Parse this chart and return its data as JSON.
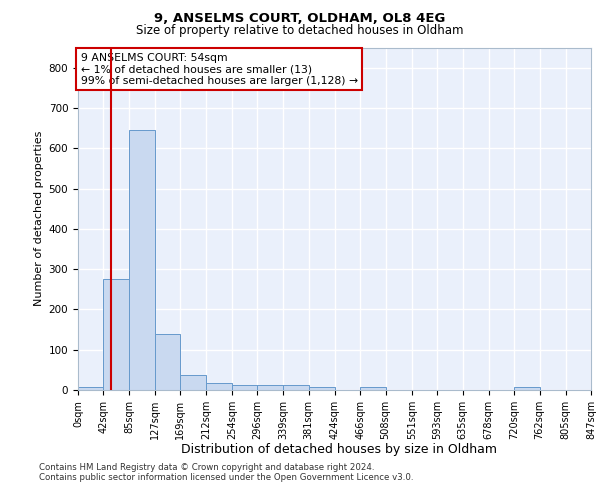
{
  "title1": "9, ANSELMS COURT, OLDHAM, OL8 4EG",
  "title2": "Size of property relative to detached houses in Oldham",
  "xlabel": "Distribution of detached houses by size in Oldham",
  "ylabel": "Number of detached properties",
  "bin_edges": [
    0,
    42,
    85,
    127,
    169,
    212,
    254,
    296,
    339,
    381,
    424,
    466,
    508,
    551,
    593,
    635,
    678,
    720,
    762,
    805,
    847
  ],
  "bar_heights": [
    8,
    275,
    645,
    140,
    37,
    18,
    13,
    12,
    12,
    8,
    0,
    8,
    0,
    0,
    0,
    0,
    0,
    8,
    0,
    0
  ],
  "bar_color": "#c9d9f0",
  "bar_edge_color": "#6699cc",
  "vline_x": 54,
  "vline_color": "#cc0000",
  "ylim": [
    0,
    850
  ],
  "yticks": [
    0,
    100,
    200,
    300,
    400,
    500,
    600,
    700,
    800
  ],
  "annotation_text": "9 ANSELMS COURT: 54sqm\n← 1% of detached houses are smaller (13)\n99% of semi-detached houses are larger (1,128) →",
  "annotation_box_color": "#ffffff",
  "annotation_box_edge": "#cc0000",
  "footer1": "Contains HM Land Registry data © Crown copyright and database right 2024.",
  "footer2": "Contains public sector information licensed under the Open Government Licence v3.0.",
  "plot_background": "#eaf0fb",
  "grid_color": "#ffffff",
  "tick_label_fontsize": 7,
  "ylabel_fontsize": 8,
  "xlabel_fontsize": 9
}
